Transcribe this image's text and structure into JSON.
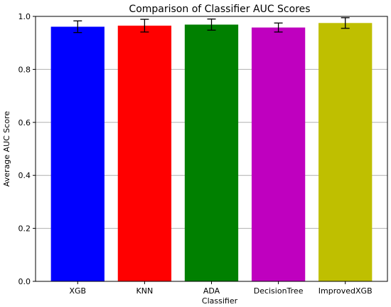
{
  "chart_data": {
    "type": "bar",
    "title": "Comparison of Classifier AUC Scores",
    "xlabel": "Classifier",
    "ylabel": "Average AUC Score",
    "categories": [
      "XGB",
      "KNN",
      "ADA",
      "DecisionTree",
      "ImprovedXGB"
    ],
    "values": [
      0.961,
      0.965,
      0.969,
      0.958,
      0.975
    ],
    "errors": [
      0.022,
      0.024,
      0.021,
      0.017,
      0.02
    ],
    "colors": [
      "#0000ff",
      "#ff0000",
      "#008000",
      "#bf00bf",
      "#bfbf00"
    ],
    "ylim": [
      0,
      1.0
    ],
    "yticks": [
      0.0,
      0.2,
      0.4,
      0.6,
      0.8,
      1.0
    ],
    "ytick_labels": [
      "0.0",
      "0.2",
      "0.4",
      "0.6",
      "0.8",
      "1.0"
    ],
    "grid": "y"
  }
}
